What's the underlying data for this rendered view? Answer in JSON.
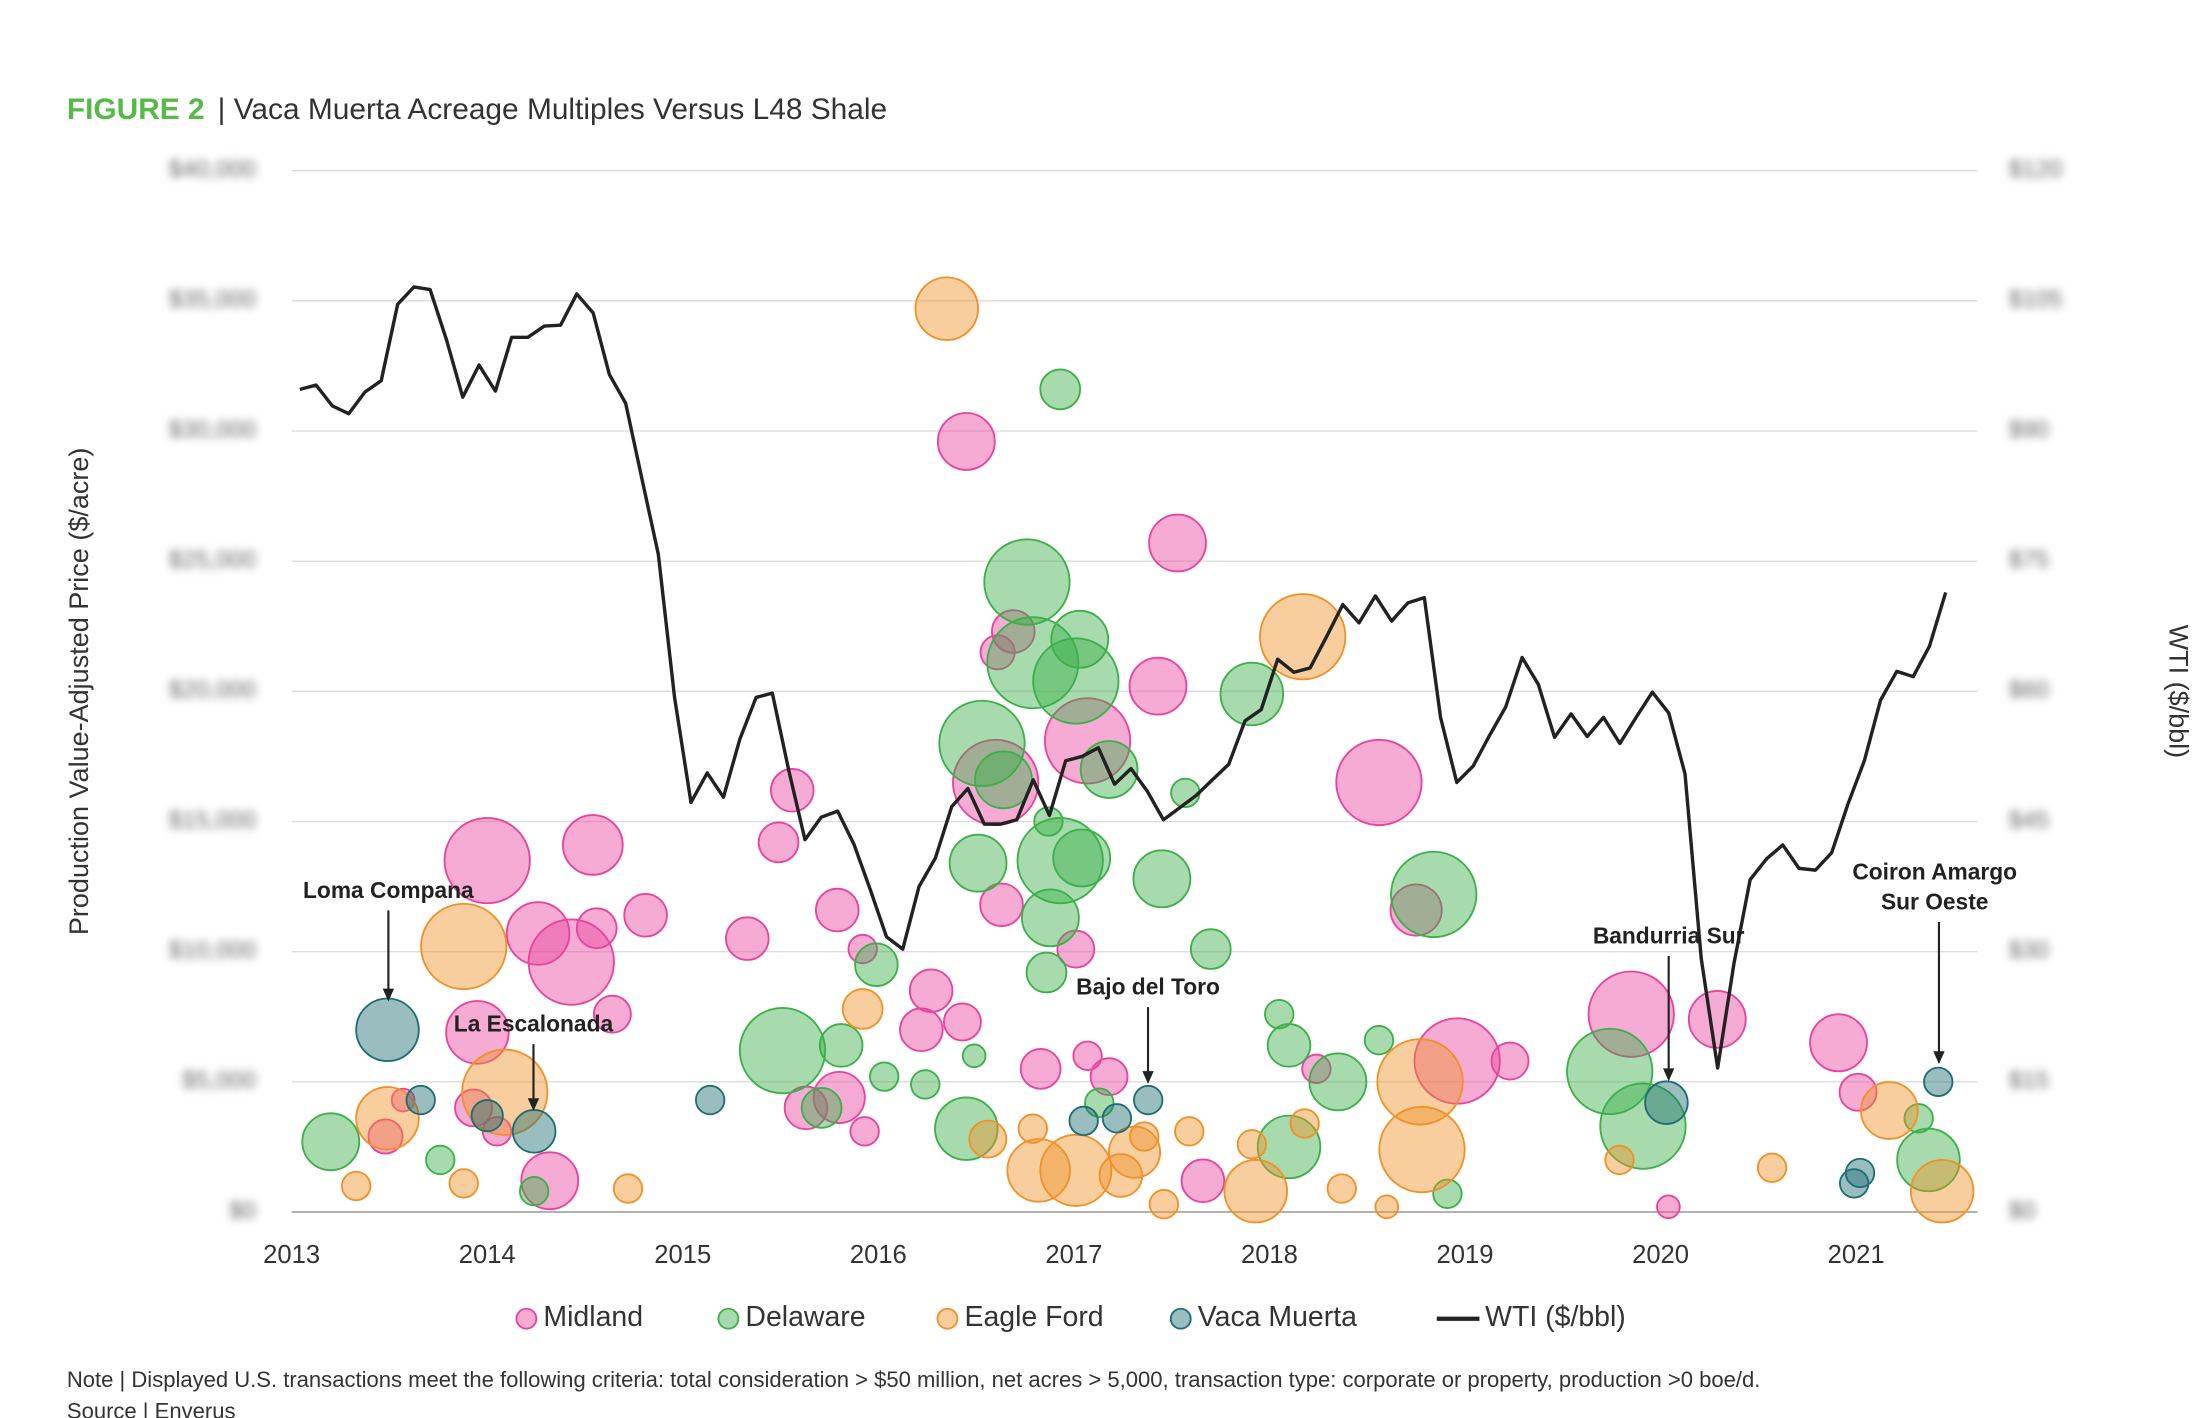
{
  "chart_data": {
    "type": "bubble",
    "figure_label": "FIGURE 2",
    "title": "| Vaca Muerta Acreage Multiples Versus L48 Shale",
    "y_label": "Production Value-Adjusted Price ($/acre)",
    "y2_label": "WTI ($/bbl)",
    "note": "Note | Displayed U.S. transactions meet the following criteria: total consideration > $50 million, net acres > 5,000, transaction type: corporate or property, production >0 boe/d.",
    "source": "Source | Enverus",
    "xlim": [
      2013,
      2021.62
    ],
    "xticks": [
      2013,
      2014,
      2015,
      2016,
      2017,
      2018,
      2019,
      2020,
      2021
    ],
    "ylim": [
      0,
      40000
    ],
    "yticks": [
      {
        "value": 0,
        "label": "$0"
      },
      {
        "value": 5000,
        "label": "$5,000"
      },
      {
        "value": 10000,
        "label": "$10,000"
      },
      {
        "value": 15000,
        "label": "$15,000"
      },
      {
        "value": 20000,
        "label": "$20,000"
      },
      {
        "value": 25000,
        "label": "$25,000"
      },
      {
        "value": 30000,
        "label": "$30,000"
      },
      {
        "value": 35000,
        "label": "$35,000"
      },
      {
        "value": 40000,
        "label": "$40,000"
      }
    ],
    "y2lim": [
      0,
      120
    ],
    "y2ticks": [
      {
        "value": 0,
        "label": "$0"
      },
      {
        "value": 15,
        "label": "$15"
      },
      {
        "value": 30,
        "label": "$30"
      },
      {
        "value": 45,
        "label": "$45"
      },
      {
        "value": 60,
        "label": "$60"
      },
      {
        "value": 75,
        "label": "$75"
      },
      {
        "value": 90,
        "label": "$90"
      },
      {
        "value": 105,
        "label": "$105"
      },
      {
        "value": 120,
        "label": "$120"
      }
    ],
    "grid": true,
    "annotations": [
      [
        "Loma Compana"
      ],
      [
        "La Escalonada"
      ],
      [
        "Bajo del Toro"
      ],
      [
        "Bandurria Sur"
      ],
      [
        "Coiron Amargo",
        "Sur Oeste"
      ]
    ],
    "series": [
      {
        "name": "Midland",
        "color": "#e8449e",
        "x": [
          2014.0,
          2014.54,
          2014.26,
          2014.43,
          2014.56,
          2014.81,
          2015.33,
          2015.56,
          2015.49,
          2015.79,
          2015.92,
          2013.95,
          2013.93,
          2014.05,
          2013.48,
          2013.57,
          2014.32,
          2014.64,
          2015.63,
          2015.8,
          2015.93,
          2016.27,
          2016.22,
          2016.43,
          2016.45,
          2017.53,
          2016.61,
          2016.69,
          2017.07,
          2016.6,
          2016.63,
          2017.01,
          2016.83,
          2017.07,
          2017.18,
          2017.43,
          2017.66,
          2018.56,
          2018.75,
          2018.96,
          2019.23,
          2019.85,
          2020.29,
          2020.91,
          2021.01,
          2020.04,
          2018.24
        ],
        "values": [
          13500,
          14100,
          10700,
          9600,
          10900,
          11400,
          10500,
          16200,
          14200,
          11600,
          10100,
          6900,
          4000,
          3100,
          2900,
          4300,
          1200,
          7600,
          4000,
          4400,
          3100,
          8500,
          7000,
          7300,
          29600,
          25700,
          21500,
          22300,
          18100,
          16500,
          11800,
          10100,
          5500,
          6000,
          5200,
          20200,
          1200,
          16500,
          11600,
          5800,
          5800,
          7600,
          7400,
          6500,
          4600,
          200,
          5500
        ],
        "sizes": [
          30,
          21,
          22,
          30,
          14,
          15,
          15,
          15,
          14,
          15,
          10,
          22,
          13,
          10,
          12,
          8,
          20,
          13,
          15,
          18,
          10,
          15,
          15,
          13,
          20,
          20,
          12,
          15,
          30,
          30,
          15,
          13,
          14,
          10,
          13,
          20,
          15,
          30,
          18,
          30,
          13,
          30,
          20,
          20,
          13,
          8,
          10
        ]
      },
      {
        "name": "Delaware",
        "color": "#3cb04a",
        "x": [
          2013.2,
          2013.76,
          2014.24,
          2015.99,
          2015.81,
          2015.51,
          2016.03,
          2016.24,
          2016.49,
          2016.45,
          2016.93,
          2016.76,
          2016.79,
          2017.03,
          2017.01,
          2016.53,
          2016.64,
          2016.51,
          2016.93,
          2017.04,
          2016.88,
          2016.86,
          2016.87,
          2017.18,
          2017.57,
          2017.45,
          2017.7,
          2017.91,
          2018.1,
          2018.05,
          2018.1,
          2018.35,
          2018.56,
          2018.84,
          2018.91,
          2019.74,
          2019.91,
          2021.32,
          2021.37,
          2017.13,
          2015.71
        ],
        "values": [
          2700,
          2000,
          800,
          9500,
          6400,
          6200,
          5200,
          4900,
          6000,
          3200,
          31600,
          24200,
          21100,
          22000,
          20400,
          18000,
          16600,
          13400,
          13500,
          13600,
          11300,
          9200,
          15000,
          17000,
          16100,
          12800,
          10100,
          19900,
          2500,
          7600,
          6400,
          5000,
          6600,
          12200,
          700,
          5400,
          3300,
          3600,
          2000,
          4200,
          4000
        ],
        "sizes": [
          20,
          10,
          10,
          15,
          15,
          30,
          10,
          10,
          8,
          22,
          14,
          30,
          32,
          20,
          30,
          30,
          20,
          20,
          30,
          20,
          20,
          14,
          10,
          20,
          10,
          20,
          14,
          22,
          22,
          10,
          15,
          20,
          10,
          30,
          10,
          30,
          30,
          10,
          22,
          10,
          14
        ]
      },
      {
        "name": "Eagle Ford",
        "color": "#f0922a",
        "x": [
          2016.35,
          2018.17,
          2013.88,
          2014.09,
          2013.49,
          2013.33,
          2013.88,
          2014.72,
          2015.92,
          2016.56,
          2016.79,
          2016.82,
          2017.01,
          2017.24,
          2017.31,
          2017.36,
          2017.59,
          2017.46,
          2017.91,
          2017.93,
          2018.18,
          2018.37,
          2018.6,
          2018.77,
          2018.78,
          2019.79,
          2020.57,
          2021.17,
          2021.44
        ],
        "values": [
          34700,
          22100,
          10200,
          4600,
          3600,
          1000,
          1100,
          900,
          7800,
          2800,
          3200,
          1600,
          1600,
          1400,
          2300,
          2900,
          3100,
          300,
          2600,
          800,
          3400,
          900,
          200,
          5000,
          2400,
          2000,
          1700,
          3900,
          800
        ],
        "sizes": [
          22,
          30,
          30,
          30,
          22,
          10,
          10,
          10,
          14,
          13,
          10,
          22,
          25,
          15,
          18,
          10,
          10,
          10,
          10,
          22,
          10,
          10,
          8,
          30,
          30,
          10,
          10,
          20,
          22
        ]
      },
      {
        "name": "Vaca Muerta",
        "color": "#1f6e74",
        "x": [
          2013.49,
          2013.66,
          2014.0,
          2014.24,
          2015.14,
          2017.05,
          2017.22,
          2017.38,
          2020.03,
          2020.99,
          2021.02,
          2021.42
        ],
        "values": [
          7000,
          4300,
          3700,
          3100,
          4300,
          3500,
          3600,
          4300,
          4200,
          1100,
          1500,
          5000
        ],
        "sizes": [
          22,
          10,
          11,
          15,
          10,
          10,
          10,
          10,
          15,
          10,
          10,
          10
        ]
      },
      {
        "name": "WTI ($/bbl)",
        "color": "#222222",
        "type": "line",
        "axis": "y2",
        "x": [
          2013.042,
          2013.125,
          2013.208,
          2013.292,
          2013.375,
          2013.458,
          2013.542,
          2013.625,
          2013.708,
          2013.792,
          2013.875,
          2013.958,
          2014.042,
          2014.125,
          2014.208,
          2014.292,
          2014.375,
          2014.458,
          2014.542,
          2014.625,
          2014.708,
          2014.792,
          2014.875,
          2014.958,
          2015.042,
          2015.125,
          2015.208,
          2015.292,
          2015.375,
          2015.458,
          2015.542,
          2015.625,
          2015.708,
          2015.792,
          2015.875,
          2015.958,
          2016.042,
          2016.125,
          2016.208,
          2016.292,
          2016.375,
          2016.458,
          2016.542,
          2016.625,
          2016.708,
          2016.792,
          2016.875,
          2016.958,
          2017.042,
          2017.125,
          2017.208,
          2017.292,
          2017.375,
          2017.458,
          2017.542,
          2017.625,
          2017.708,
          2017.792,
          2017.875,
          2017.958,
          2018.042,
          2018.125,
          2018.208,
          2018.292,
          2018.375,
          2018.458,
          2018.542,
          2018.625,
          2018.708,
          2018.792,
          2018.875,
          2018.958,
          2019.042,
          2019.125,
          2019.208,
          2019.292,
          2019.375,
          2019.458,
          2019.542,
          2019.625,
          2019.708,
          2019.792,
          2019.875,
          2019.958,
          2020.042,
          2020.125,
          2020.208,
          2020.292,
          2020.375,
          2020.458,
          2020.542,
          2020.625,
          2020.708,
          2020.792,
          2020.875,
          2020.958,
          2021.042,
          2021.125,
          2021.208,
          2021.292,
          2021.375,
          2021.458
        ],
        "values": [
          94.8,
          95.3,
          92.9,
          92.0,
          94.5,
          95.8,
          104.6,
          106.6,
          106.3,
          100.5,
          93.9,
          97.6,
          94.6,
          100.8,
          100.8,
          102.1,
          102.2,
          105.8,
          103.6,
          96.5,
          93.2,
          84.4,
          75.8,
          59.3,
          47.2,
          50.6,
          47.8,
          54.5,
          59.3,
          59.8,
          50.9,
          42.9,
          45.5,
          46.2,
          42.4,
          37.2,
          31.7,
          30.3,
          37.5,
          40.8,
          46.7,
          48.8,
          44.7,
          44.7,
          45.2,
          49.8,
          45.7,
          52.0,
          52.5,
          53.5,
          49.3,
          51.1,
          48.5,
          45.2,
          46.6,
          48.0,
          49.8,
          51.6,
          56.6,
          57.9,
          63.7,
          62.2,
          62.7,
          66.3,
          70.0,
          67.9,
          71.0,
          68.1,
          70.2,
          70.8,
          57.0,
          49.5,
          51.4,
          54.9,
          58.2,
          63.9,
          60.8,
          54.7,
          57.4,
          54.8,
          57.0,
          54.0,
          57.0,
          59.9,
          57.5,
          50.5,
          29.2,
          16.6,
          28.6,
          38.3,
          40.7,
          42.3,
          39.6,
          39.4,
          41.4,
          47.0,
          52.0,
          59.0,
          62.3,
          61.7,
          65.2,
          71.4
        ]
      }
    ]
  }
}
